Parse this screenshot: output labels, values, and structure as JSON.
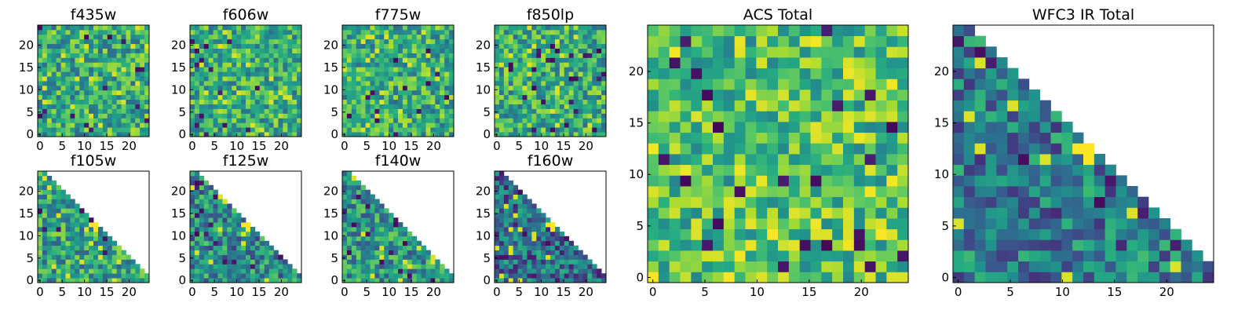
{
  "chart_data": [
    {
      "type": "heatmap",
      "title": "f435w",
      "xticks": [
        0,
        5,
        10,
        15,
        20
      ],
      "yticks": [
        0,
        5,
        10,
        15,
        20
      ],
      "xlim": [
        0,
        24
      ],
      "ylim": [
        0,
        24
      ],
      "colormap": "viridis",
      "mask": "none",
      "grid_size": [
        24,
        24
      ],
      "mean_level": 0.62,
      "hotspots": []
    },
    {
      "type": "heatmap",
      "title": "f606w",
      "xticks": [
        0,
        5,
        10,
        15,
        20
      ],
      "yticks": [
        0,
        5,
        10,
        15,
        20
      ],
      "xlim": [
        0,
        24
      ],
      "ylim": [
        0,
        24
      ],
      "colormap": "viridis",
      "mask": "none",
      "grid_size": [
        24,
        24
      ],
      "mean_level": 0.63,
      "hotspots": []
    },
    {
      "type": "heatmap",
      "title": "f775w",
      "xticks": [
        0,
        5,
        10,
        15,
        20
      ],
      "yticks": [
        0,
        5,
        10,
        15,
        20
      ],
      "xlim": [
        0,
        24
      ],
      "ylim": [
        0,
        24
      ],
      "colormap": "viridis",
      "mask": "none",
      "grid_size": [
        24,
        24
      ],
      "mean_level": 0.63,
      "hotspots": []
    },
    {
      "type": "heatmap",
      "title": "f850lp",
      "xticks": [
        0,
        5,
        10,
        15,
        20
      ],
      "yticks": [
        0,
        5,
        10,
        15,
        20
      ],
      "xlim": [
        0,
        24
      ],
      "ylim": [
        0,
        24
      ],
      "colormap": "viridis",
      "mask": "none",
      "grid_size": [
        24,
        24
      ],
      "mean_level": 0.62,
      "hotspots": []
    },
    {
      "type": "heatmap",
      "title": "f105w",
      "xticks": [
        0,
        5,
        10,
        15,
        20
      ],
      "yticks": [
        0,
        5,
        10,
        15,
        20
      ],
      "xlim": [
        0,
        24
      ],
      "ylim": [
        0,
        24
      ],
      "colormap": "viridis",
      "mask": "upper-right-triangle",
      "grid_size": [
        24,
        24
      ],
      "mean_level": 0.58,
      "hotspots": [
        [
          12,
          12
        ]
      ]
    },
    {
      "type": "heatmap",
      "title": "f125w",
      "xticks": [
        0,
        5,
        10,
        15,
        20
      ],
      "yticks": [
        0,
        5,
        10,
        15,
        20
      ],
      "xlim": [
        0,
        24
      ],
      "ylim": [
        0,
        24
      ],
      "colormap": "viridis",
      "mask": "upper-right-triangle",
      "grid_size": [
        24,
        24
      ],
      "mean_level": 0.48,
      "hotspots": [
        [
          12,
          12
        ]
      ]
    },
    {
      "type": "heatmap",
      "title": "f140w",
      "xticks": [
        0,
        5,
        10,
        15,
        20
      ],
      "yticks": [
        0,
        5,
        10,
        15,
        20
      ],
      "xlim": [
        0,
        24
      ],
      "ylim": [
        0,
        24
      ],
      "colormap": "viridis",
      "mask": "upper-right-triangle",
      "grid_size": [
        24,
        24
      ],
      "mean_level": 0.52,
      "hotspots": []
    },
    {
      "type": "heatmap",
      "title": "f160w",
      "xticks": [
        0,
        5,
        10,
        15,
        20
      ],
      "yticks": [
        0,
        5,
        10,
        15,
        20
      ],
      "xlim": [
        0,
        24
      ],
      "ylim": [
        0,
        24
      ],
      "colormap": "viridis",
      "mask": "upper-right-triangle",
      "grid_size": [
        24,
        24
      ],
      "mean_level": 0.38,
      "hotspots": [
        [
          12,
          12
        ]
      ]
    },
    {
      "type": "heatmap",
      "title": "ACS Total",
      "xticks": [
        0,
        5,
        10,
        15,
        20
      ],
      "yticks": [
        0,
        5,
        10,
        15,
        20
      ],
      "xlim": [
        0,
        24
      ],
      "ylim": [
        0,
        24
      ],
      "colormap": "viridis",
      "mask": "none",
      "grid_size": [
        24,
        24
      ],
      "mean_level": 0.72,
      "hotspots": []
    },
    {
      "type": "heatmap",
      "title": "WFC3 IR Total",
      "xticks": [
        0,
        5,
        10,
        15,
        20
      ],
      "yticks": [
        0,
        5,
        10,
        15,
        20
      ],
      "xlim": [
        0,
        24
      ],
      "ylim": [
        0,
        24
      ],
      "colormap": "viridis",
      "mask": "upper-right-triangle",
      "grid_size": [
        24,
        24
      ],
      "mean_level": 0.42,
      "hotspots": [
        [
          12,
          12
        ]
      ]
    }
  ]
}
